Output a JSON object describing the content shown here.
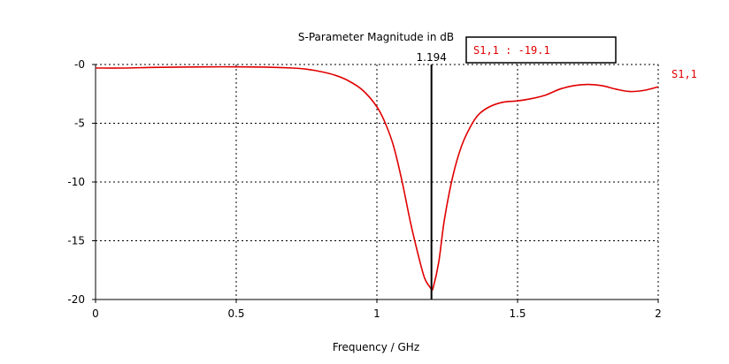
{
  "chart_data": {
    "type": "line",
    "title": "S-Parameter Magnitude in dB",
    "xlabel": "Frequency / GHz",
    "ylabel": "",
    "xlim": [
      0,
      2
    ],
    "ylim": [
      -20,
      0
    ],
    "grid": true,
    "x_ticks": [
      0,
      0.5,
      1,
      1.5,
      2
    ],
    "x_tick_labels": [
      "0",
      "0.5",
      "1",
      "1.5",
      "2"
    ],
    "y_ticks": [
      0,
      -5,
      -10,
      -15,
      -20
    ],
    "y_tick_labels": [
      "-0",
      "-5",
      "-10",
      "-15",
      "-20"
    ],
    "series": [
      {
        "name": "S1,1",
        "color": "#e00000",
        "x": [
          0,
          0.1,
          0.2,
          0.3,
          0.4,
          0.5,
          0.6,
          0.7,
          0.75,
          0.8,
          0.85,
          0.9,
          0.95,
          1.0,
          1.03,
          1.06,
          1.09,
          1.12,
          1.15,
          1.17,
          1.19,
          1.194,
          1.2,
          1.22,
          1.24,
          1.27,
          1.3,
          1.33,
          1.36,
          1.4,
          1.45,
          1.5,
          1.55,
          1.6,
          1.65,
          1.7,
          1.75,
          1.8,
          1.85,
          1.9,
          1.95,
          2.0
        ],
        "y": [
          -0.3,
          -0.3,
          -0.25,
          -0.22,
          -0.2,
          -0.2,
          -0.22,
          -0.3,
          -0.4,
          -0.6,
          -0.9,
          -1.4,
          -2.2,
          -3.6,
          -5.0,
          -7.0,
          -10.0,
          -13.5,
          -16.5,
          -18.2,
          -19.0,
          -19.1,
          -19.0,
          -16.8,
          -13.2,
          -9.5,
          -7.0,
          -5.4,
          -4.3,
          -3.6,
          -3.2,
          -3.1,
          -2.9,
          -2.6,
          -2.1,
          -1.8,
          -1.7,
          -1.8,
          -2.1,
          -2.3,
          -2.2,
          -1.9
        ]
      }
    ],
    "marker": {
      "x": 1.194,
      "x_label": "1.194",
      "readout": "S1,1 : -19.1",
      "readout_color": "#e00000"
    },
    "legend": {
      "position": "right",
      "entries": [
        "S1,1"
      ]
    }
  }
}
